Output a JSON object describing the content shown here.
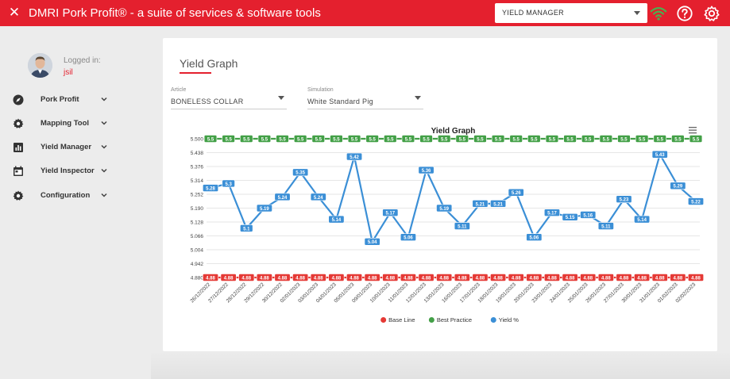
{
  "header": {
    "title": "DMRI Pork Profit® - a suite of services & software tools",
    "module_select": "YIELD MANAGER",
    "close_icon": "close-icon",
    "icons": [
      "wifi-icon",
      "help-icon",
      "gear-icon"
    ],
    "colors": {
      "brand": "#e4202e",
      "wifi": "#4caf50"
    }
  },
  "user": {
    "logged_in_label": "Logged in:",
    "name": "jsil"
  },
  "sidebar": {
    "items": [
      {
        "label": "Pork Profit",
        "icon": "compass-icon"
      },
      {
        "label": "Mapping Tool",
        "icon": "gear-icon"
      },
      {
        "label": "Yield Manager",
        "icon": "bar-chart-icon"
      },
      {
        "label": "Yield Inspector",
        "icon": "calendar-icon"
      },
      {
        "label": "Configuration",
        "icon": "gear-icon"
      }
    ]
  },
  "main": {
    "card_title": "Yield Graph",
    "article": {
      "label": "Article",
      "value": "BONELESS COLLAR"
    },
    "simulation": {
      "label": "Simulation",
      "value": "White Standard Pig"
    }
  },
  "chart_data": {
    "type": "line",
    "title": "Yield Graph",
    "x": [
      "26/12/2022",
      "27/12/2022",
      "28/12/2022",
      "29/12/2022",
      "30/12/2022",
      "02/01/2023",
      "03/01/2023",
      "04/01/2023",
      "05/01/2023",
      "09/01/2023",
      "10/01/2023",
      "11/01/2023",
      "12/01/2023",
      "13/01/2023",
      "16/01/2023",
      "17/01/2023",
      "18/01/2023",
      "19/01/2023",
      "20/01/2023",
      "23/01/2023",
      "24/01/2023",
      "25/01/2023",
      "26/01/2023",
      "27/01/2023",
      "30/01/2023",
      "31/01/2023",
      "01/02/2023",
      "02/02/2023"
    ],
    "y_ticks": [
      "5.500",
      "5.438",
      "5.376",
      "5.314",
      "5.252",
      "5.190",
      "5.128",
      "5.066",
      "5.004",
      "4.942",
      "4.880"
    ],
    "ylim": [
      4.88,
      5.5
    ],
    "series": [
      {
        "name": "Base Line",
        "color": "#e53935",
        "labels": [
          "4.88",
          "4.88",
          "4.88",
          "4.88",
          "4.88",
          "4.88",
          "4.88",
          "4.88",
          "4.88",
          "4.88",
          "4.88",
          "4.88",
          "4.88",
          "4.88",
          "4.88",
          "4.88",
          "4.88",
          "4.88",
          "4.88",
          "4.88",
          "4.88",
          "4.88",
          "4.88",
          "4.88",
          "4.88",
          "4.88",
          "4.88",
          "4.88"
        ],
        "values": [
          4.88,
          4.88,
          4.88,
          4.88,
          4.88,
          4.88,
          4.88,
          4.88,
          4.88,
          4.88,
          4.88,
          4.88,
          4.88,
          4.88,
          4.88,
          4.88,
          4.88,
          4.88,
          4.88,
          4.88,
          4.88,
          4.88,
          4.88,
          4.88,
          4.88,
          4.88,
          4.88,
          4.88
        ]
      },
      {
        "name": "Best Practice",
        "color": "#43a047",
        "labels": [
          "5.5",
          "5.5",
          "5.5",
          "5.5",
          "5.5",
          "5.5",
          "5.5",
          "5.5",
          "5.5",
          "5.5",
          "5.5",
          "5.5",
          "5.5",
          "5.5",
          "5.5",
          "5.5",
          "5.5",
          "5.5",
          "5.5",
          "5.5",
          "5.5",
          "5.5",
          "5.5",
          "5.5",
          "5.5",
          "5.5",
          "5.5",
          "5.5"
        ],
        "values": [
          5.5,
          5.5,
          5.5,
          5.5,
          5.5,
          5.5,
          5.5,
          5.5,
          5.5,
          5.5,
          5.5,
          5.5,
          5.5,
          5.5,
          5.5,
          5.5,
          5.5,
          5.5,
          5.5,
          5.5,
          5.5,
          5.5,
          5.5,
          5.5,
          5.5,
          5.5,
          5.5,
          5.5
        ]
      },
      {
        "name": "Yield %",
        "color": "#3b8fd6",
        "labels": [
          "5.28",
          "5.3",
          "5.1",
          "5.19",
          "5.24",
          "5.35",
          "5.24",
          "5.14",
          "5.42",
          "5.04",
          "5.17",
          "5.06",
          "5.36",
          "5.19",
          "5.11",
          "5.21",
          "5.21",
          "5.26",
          "5.06",
          "5.17",
          "5.15",
          "5.16",
          "5.11",
          "5.23",
          "5.14",
          "5.43",
          "5.29",
          "5.22"
        ],
        "values": [
          5.28,
          5.3,
          5.1,
          5.19,
          5.24,
          5.35,
          5.24,
          5.14,
          5.42,
          5.04,
          5.17,
          5.06,
          5.36,
          5.19,
          5.11,
          5.21,
          5.21,
          5.26,
          5.06,
          5.17,
          5.15,
          5.16,
          5.11,
          5.23,
          5.14,
          5.43,
          5.29,
          5.22
        ]
      }
    ],
    "legend_position": "bottom",
    "grid": true,
    "menu_icon": "hamburger-menu-icon"
  }
}
